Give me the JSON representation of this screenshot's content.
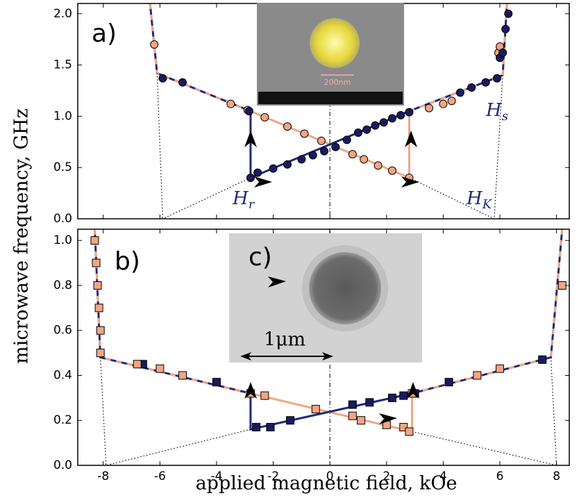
{
  "chart_data": [
    {
      "type": "scatter",
      "label": "a)",
      "xlim": [
        -8.9,
        8.45
      ],
      "xticks": [
        -8,
        -6,
        -4,
        -2,
        0,
        2,
        4,
        6,
        8
      ],
      "xtick_labels": false,
      "ylim": [
        0,
        2.1
      ],
      "yticks": [
        {
          "value": 0,
          "label": "0.0"
        },
        {
          "value": 0.5,
          "label": "0.5"
        },
        {
          "value": 1,
          "label": "1.0"
        },
        {
          "value": 1.5,
          "label": "1.5"
        },
        {
          "value": 2,
          "label": "2.0"
        }
      ],
      "ylabel": "microwave frequency, GHz",
      "vline": 0,
      "inset_text": "200nm",
      "annotations": [
        {
          "text": "H",
          "sub": "r"
        },
        {
          "text": "H",
          "sub": "s"
        },
        {
          "text": "H",
          "sub": "K"
        }
      ],
      "lines": [
        {
          "color": "#1f2a7a",
          "dash_color": "#f4a582",
          "style": "dashed",
          "x": [
            -6.35,
            -6.1,
            -2.8
          ],
          "values": [
            2.1,
            1.42,
            1.05
          ]
        },
        {
          "color": "#1f2a7a",
          "dash_color": "#f4a582",
          "style": "dashed",
          "x": [
            2.8,
            6.1,
            6.25
          ],
          "values": [
            1.05,
            1.4,
            2.1
          ]
        },
        {
          "color": "#f4a582",
          "style": "solid",
          "x": [
            -2.8,
            2.8,
            2.8
          ],
          "values": [
            1.05,
            0.4,
            1.05
          ]
        },
        {
          "color": "#1f2a7a",
          "style": "solid",
          "x": [
            -2.8,
            -2.8,
            2.8
          ],
          "values": [
            1.05,
            0.4,
            1.05
          ]
        },
        {
          "color": "#000000",
          "style": "dotted",
          "x": [
            -6.1,
            -5.9
          ],
          "values": [
            1.42,
            0
          ]
        },
        {
          "color": "#000000",
          "style": "dotted",
          "x": [
            -2.8,
            -5.9
          ],
          "values": [
            0.4,
            0
          ]
        },
        {
          "color": "#000000",
          "style": "dotted",
          "x": [
            2.8,
            5.8
          ],
          "values": [
            0.4,
            0
          ]
        },
        {
          "color": "#000000",
          "style": "dotted",
          "x": [
            6.1,
            5.8
          ],
          "values": [
            1.4,
            0
          ]
        }
      ],
      "series": [
        {
          "color": "#f4a582",
          "marker": "circle",
          "x": [
            -6.2,
            -3.5,
            -2.9,
            -2.3,
            -1.5,
            -0.9,
            -0.3,
            0.8,
            1.2,
            1.7,
            2.2,
            2.8,
            3.5,
            4.0,
            4.3,
            5.95,
            6.0
          ],
          "values": [
            1.7,
            1.12,
            1.06,
            0.99,
            0.9,
            0.83,
            0.76,
            0.63,
            0.58,
            0.52,
            0.47,
            0.4,
            1.08,
            1.12,
            1.15,
            1.62,
            1.68
          ]
        },
        {
          "color": "#1a1a5e",
          "marker": "circle",
          "x": [
            -5.9,
            -5.2,
            -2.85,
            -2.8,
            -2.55,
            -2.0,
            -1.5,
            -1.0,
            -0.6,
            -0.2,
            0.2,
            0.6,
            1.0,
            1.3,
            1.6,
            1.9,
            2.2,
            2.5,
            2.8,
            4.6,
            5.0,
            5.5,
            5.9,
            6.0,
            6.1,
            6.2,
            6.3
          ],
          "values": [
            1.37,
            1.33,
            1.05,
            0.4,
            0.45,
            0.49,
            0.53,
            0.58,
            0.62,
            0.66,
            0.7,
            0.77,
            0.84,
            0.87,
            0.91,
            0.94,
            0.98,
            1.01,
            1.04,
            1.23,
            1.28,
            1.33,
            1.37,
            1.57,
            1.62,
            1.85,
            2.0
          ]
        }
      ]
    },
    {
      "type": "scatter",
      "label": "b)",
      "xlim": [
        -8.9,
        8.45
      ],
      "xticks": [
        -8,
        -6,
        -4,
        -2,
        0,
        2,
        4,
        6,
        8
      ],
      "xtick_labels": true,
      "ylim": [
        0,
        1.05
      ],
      "yticks": [
        {
          "value": 0,
          "label": "0.0"
        },
        {
          "value": 0.2,
          "label": "0.2"
        },
        {
          "value": 0.4,
          "label": "0.4"
        },
        {
          "value": 0.6,
          "label": "0.6"
        },
        {
          "value": 0.8,
          "label": "0.8"
        },
        {
          "value": 1,
          "label": "1.0"
        }
      ],
      "xlabel": "applied magnetic field, kOe",
      "vline": 0,
      "inset_label": "c)",
      "scale_text": "1μm",
      "lines": [
        {
          "color": "#1f2a7a",
          "dash_color": "#f4a582",
          "style": "dashed",
          "x": [
            -8.3,
            -8.1,
            -2.8
          ],
          "values": [
            1.05,
            0.48,
            0.32
          ]
        },
        {
          "color": "#1f2a7a",
          "dash_color": "#f4a582",
          "style": "dashed",
          "x": [
            2.9,
            7.8,
            8.2
          ],
          "values": [
            0.32,
            0.48,
            1.05
          ]
        },
        {
          "color": "#f4a582",
          "style": "solid",
          "x": [
            -2.8,
            2.9,
            2.9
          ],
          "values": [
            0.32,
            0.15,
            0.32
          ]
        },
        {
          "color": "#1f2a7a",
          "style": "solid",
          "x": [
            -2.8,
            -2.8,
            2.9
          ],
          "values": [
            0.32,
            0.16,
            0.32
          ]
        },
        {
          "color": "#000000",
          "style": "dotted",
          "x": [
            -8.1,
            -7.9
          ],
          "values": [
            0.48,
            0
          ]
        },
        {
          "color": "#000000",
          "style": "dotted",
          "x": [
            -2.8,
            -7.9
          ],
          "values": [
            0.16,
            0
          ]
        },
        {
          "color": "#000000",
          "style": "dotted",
          "x": [
            2.9,
            8.0
          ],
          "values": [
            0.15,
            0
          ]
        },
        {
          "color": "#000000",
          "style": "dotted",
          "x": [
            7.8,
            8.0
          ],
          "values": [
            0.48,
            0
          ]
        }
      ],
      "series": [
        {
          "color": "#1a1a5e",
          "marker": "square",
          "x": [
            -6.6,
            -4.0,
            -2.6,
            -2.1,
            -1.4,
            0.8,
            1.4,
            2.2,
            2.6,
            3.0,
            4.2,
            7.5
          ],
          "values": [
            0.45,
            0.37,
            0.17,
            0.17,
            0.2,
            0.27,
            0.28,
            0.3,
            0.31,
            0.32,
            0.37,
            0.47
          ]
        },
        {
          "color": "#f4a582",
          "marker": "square",
          "x": [
            -8.3,
            -8.25,
            -8.2,
            -8.15,
            -8.1,
            -8.1,
            -6.8,
            -6.0,
            -5.2,
            -2.8,
            -2.3,
            -0.5,
            0.8,
            1.1,
            2.0,
            2.6,
            2.8,
            2.9,
            5.2,
            6.0,
            8.2
          ],
          "values": [
            1.0,
            0.9,
            0.8,
            0.7,
            0.6,
            0.5,
            0.45,
            0.43,
            0.4,
            0.32,
            0.31,
            0.25,
            0.22,
            0.2,
            0.18,
            0.17,
            0.15,
            0.32,
            0.4,
            0.43,
            0.8
          ]
        }
      ]
    }
  ]
}
